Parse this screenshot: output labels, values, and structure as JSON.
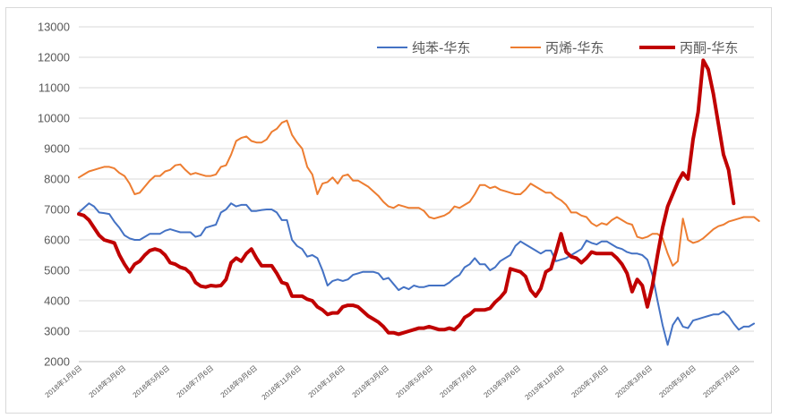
{
  "chart_data": {
    "type": "line",
    "title": "",
    "xlabel": "",
    "ylabel": "",
    "ylim": [
      2000,
      13000
    ],
    "yticks": [
      2000,
      3000,
      4000,
      5000,
      6000,
      7000,
      8000,
      9000,
      10000,
      11000,
      12000,
      13000
    ],
    "x_tick_labels": [
      "2018年1月6日",
      "2018年3月6日",
      "2018年5月6日",
      "2018年7月6日",
      "2018年9月6日",
      "2018年11月6日",
      "2019年1月6日",
      "2019年3月6日",
      "2019年5月6日",
      "2019年7月6日",
      "2019年9月6日",
      "2019年11月6日",
      "2020年1月6日",
      "2020年3月6日",
      "2020年5月6日",
      "2020年7月6日"
    ],
    "grid": "horizontal",
    "legend_position": "top-right",
    "series": [
      {
        "name": "纯苯-华东",
        "color": "#4472c4",
        "width": 2,
        "values": [
          6900,
          7050,
          7200,
          7100,
          6900,
          6880,
          6850,
          6600,
          6400,
          6150,
          6050,
          6000,
          6000,
          6100,
          6200,
          6200,
          6200,
          6300,
          6350,
          6300,
          6250,
          6250,
          6250,
          6100,
          6150,
          6400,
          6450,
          6500,
          6900,
          7000,
          7200,
          7100,
          7150,
          7150,
          6950,
          6950,
          6980,
          7000,
          7000,
          6900,
          6650,
          6650,
          6000,
          5800,
          5700,
          5450,
          5500,
          5400,
          5000,
          4500,
          4650,
          4700,
          4650,
          4700,
          4850,
          4900,
          4950,
          4950,
          4950,
          4900,
          4700,
          4750,
          4550,
          4350,
          4450,
          4380,
          4500,
          4450,
          4450,
          4500,
          4500,
          4500,
          4500,
          4600,
          4750,
          4850,
          5100,
          5200,
          5400,
          5200,
          5200,
          5000,
          5100,
          5300,
          5400,
          5500,
          5800,
          5950,
          5850,
          5750,
          5650,
          5550,
          5650,
          5650,
          5300,
          5350,
          5400,
          5500,
          5600,
          5700,
          5980,
          5900,
          5850,
          5950,
          5950,
          5850,
          5750,
          5700,
          5600,
          5550,
          5550,
          5500,
          5350,
          4850,
          4000,
          3200,
          2550,
          3200,
          3450,
          3150,
          3100,
          3350,
          3400,
          3450,
          3500,
          3550,
          3550,
          3650,
          3500,
          3250,
          3050,
          3150,
          3150,
          3250
        ]
      },
      {
        "name": "丙烯-华东",
        "color": "#ed7d31",
        "width": 2,
        "values": [
          8050,
          8150,
          8250,
          8300,
          8350,
          8400,
          8400,
          8350,
          8200,
          8100,
          7850,
          7500,
          7550,
          7750,
          7950,
          8100,
          8100,
          8250,
          8300,
          8450,
          8480,
          8300,
          8150,
          8200,
          8150,
          8100,
          8100,
          8150,
          8400,
          8450,
          8800,
          9250,
          9350,
          9400,
          9250,
          9200,
          9200,
          9300,
          9550,
          9650,
          9850,
          9920,
          9450,
          9200,
          9000,
          8400,
          8150,
          7500,
          7850,
          7900,
          8050,
          7850,
          8100,
          8150,
          7950,
          7950,
          7850,
          7750,
          7600,
          7450,
          7250,
          7100,
          7050,
          7150,
          7100,
          7050,
          7050,
          7050,
          6950,
          6750,
          6700,
          6750,
          6800,
          6900,
          7100,
          7050,
          7150,
          7250,
          7500,
          7800,
          7800,
          7700,
          7750,
          7650,
          7600,
          7550,
          7500,
          7500,
          7650,
          7850,
          7750,
          7650,
          7550,
          7550,
          7400,
          7300,
          7150,
          6900,
          6900,
          6800,
          6750,
          6550,
          6450,
          6550,
          6500,
          6650,
          6750,
          6650,
          6550,
          6500,
          6100,
          6050,
          6100,
          6200,
          6200,
          6050,
          5550,
          5150,
          5300,
          6700,
          6000,
          5900,
          5950,
          6050,
          6200,
          6350,
          6450,
          6500,
          6600,
          6650,
          6700,
          6750,
          6750,
          6750,
          6620
        ]
      },
      {
        "name": "丙酮-华东",
        "color": "#c00000",
        "width": 4,
        "values": [
          6850,
          6800,
          6650,
          6400,
          6150,
          6000,
          5950,
          5900,
          5500,
          5200,
          4950,
          5200,
          5300,
          5500,
          5650,
          5700,
          5650,
          5500,
          5250,
          5200,
          5100,
          5050,
          4900,
          4600,
          4480,
          4450,
          4500,
          4480,
          4500,
          4700,
          5250,
          5400,
          5300,
          5550,
          5700,
          5400,
          5150,
          5150,
          5150,
          4900,
          4600,
          4550,
          4150,
          4150,
          4150,
          4050,
          4000,
          3800,
          3700,
          3550,
          3600,
          3600,
          3800,
          3850,
          3850,
          3800,
          3650,
          3500,
          3400,
          3300,
          3150,
          2950,
          2950,
          2900,
          2950,
          3000,
          3050,
          3100,
          3100,
          3150,
          3100,
          3050,
          3050,
          3100,
          3050,
          3200,
          3450,
          3550,
          3700,
          3700,
          3700,
          3750,
          3950,
          4100,
          4300,
          5050,
          5000,
          4950,
          4800,
          4350,
          4150,
          4400,
          4950,
          5050,
          5600,
          6200,
          5600,
          5450,
          5400,
          5250,
          5400,
          5600,
          5550,
          5550,
          5550,
          5550,
          5400,
          5200,
          4900,
          4300,
          4700,
          4500,
          3800,
          4500,
          5500,
          6400,
          7100,
          7500,
          7900,
          8200,
          8000,
          9300,
          10200,
          11900,
          11600,
          10800,
          9800,
          8800,
          8300,
          7200
        ]
      }
    ]
  }
}
